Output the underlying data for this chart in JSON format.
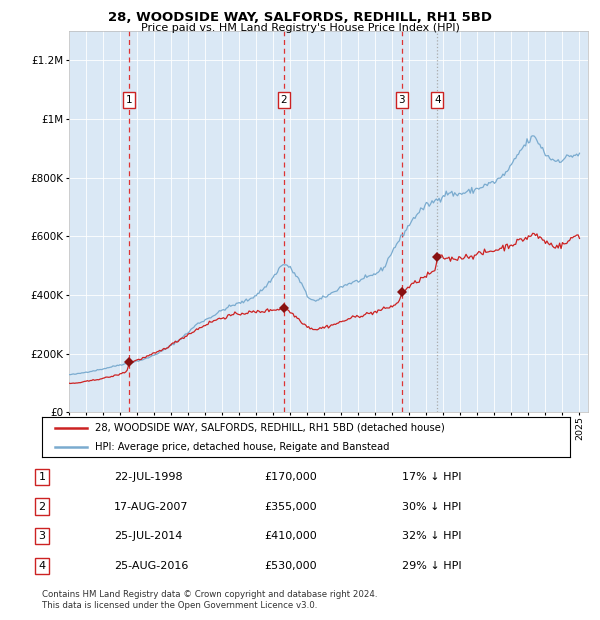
{
  "title": "28, WOODSIDE WAY, SALFORDS, REDHILL, RH1 5BD",
  "subtitle": "Price paid vs. HM Land Registry's House Price Index (HPI)",
  "ylim": [
    0,
    1300000
  ],
  "yticks": [
    0,
    200000,
    400000,
    600000,
    800000,
    1000000,
    1200000
  ],
  "ytick_labels": [
    "£0",
    "£200K",
    "£400K",
    "£600K",
    "£800K",
    "£1M",
    "£1.2M"
  ],
  "x_start_year": 1995,
  "x_end_year": 2025,
  "background_color": "#ffffff",
  "plot_bg_color": "#dae8f5",
  "grid_color": "#ffffff",
  "red_line_color": "#cc2222",
  "blue_line_color": "#7aabcf",
  "sale_marker_color": "#881111",
  "sale_dates": [
    1998.55,
    2007.63,
    2014.56,
    2016.65
  ],
  "sale_prices": [
    170000,
    355000,
    410000,
    530000
  ],
  "sale_labels": [
    "1",
    "2",
    "3",
    "4"
  ],
  "sale_date_strings": [
    "22-JUL-1998",
    "17-AUG-2007",
    "25-JUL-2014",
    "25-AUG-2016"
  ],
  "sale_price_strings": [
    "£170,000",
    "£355,000",
    "£410,000",
    "£530,000"
  ],
  "sale_discount_strings": [
    "17% ↓ HPI",
    "30% ↓ HPI",
    "32% ↓ HPI",
    "29% ↓ HPI"
  ],
  "vline_colors_red": [
    "#dd3333",
    "#dd3333",
    "#dd3333"
  ],
  "vline_color_gray": "#999999",
  "legend_line1": "28, WOODSIDE WAY, SALFORDS, REDHILL, RH1 5BD (detached house)",
  "legend_line2": "HPI: Average price, detached house, Reigate and Banstead",
  "footnote": "Contains HM Land Registry data © Crown copyright and database right 2024.\nThis data is licensed under the Open Government Licence v3.0."
}
